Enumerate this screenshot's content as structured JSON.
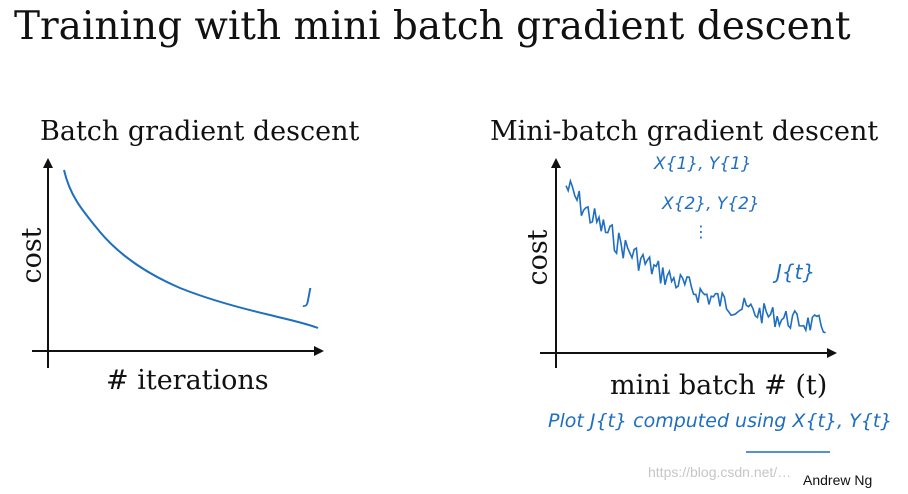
{
  "slide": {
    "title": "Training with mini batch gradient descent",
    "author": "Andrew Ng",
    "watermark": "https://blog.csdn.net/…"
  },
  "left_plot": {
    "title": "Batch gradient descent",
    "ylabel": "cost",
    "xlabel": "# iterations",
    "curve_label": "J"
  },
  "right_plot": {
    "title": "Mini-batch gradient descent",
    "ylabel": "cost",
    "xlabel": "mini batch # (t)",
    "curve_label": "J{t}",
    "notes": [
      "X{1}, Y{1}",
      "X{2}, Y{2}",
      "⋮"
    ]
  },
  "handwritten_note": {
    "text": "Plot J{t} computed using X{t}, Y{t}"
  },
  "colors": {
    "ink": "#1f6fc0",
    "axis": "#111111"
  }
}
